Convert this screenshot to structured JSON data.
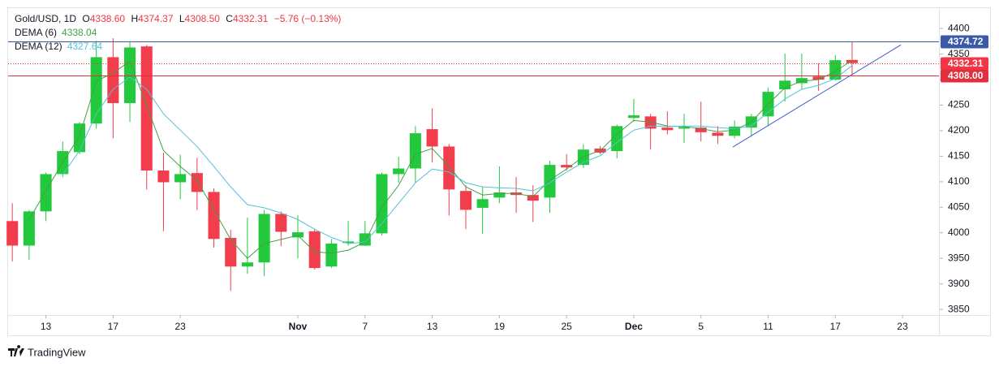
{
  "chart_data": {
    "type": "candlestick",
    "header": {
      "symbol": "Gold/USD, 1D",
      "o_key": "O",
      "o": "4338.60",
      "h_key": "H",
      "h": "4374.37",
      "l_key": "L",
      "l": "4308.50",
      "c_key": "C",
      "c": "4332.31",
      "change": "−5.76 (−0.13%)"
    },
    "legend_values": [
      "4338.04",
      "4327.64"
    ],
    "open": [
      4023,
      3975,
      4042,
      4115,
      4158,
      4214,
      4344,
      4254,
      4365,
      4122,
      4099,
      4117,
      4080,
      3990,
      3934,
      3942,
      4037,
      3991,
      4003,
      3934,
      3980,
      3975,
      3999,
      4115,
      4126,
      4203,
      4169,
      4082,
      4049,
      4069,
      4079,
      4074,
      4069,
      4133,
      4133,
      4165,
      4160,
      4225,
      4228,
      4206,
      4204,
      4206,
      4196,
      4190,
      4206,
      4228,
      4281,
      4293,
      4306,
      4300,
      4338.6
    ],
    "high": [
      4058,
      4045,
      4118,
      4179,
      4217,
      4376,
      4381,
      4373,
      4368,
      4157,
      4153,
      4147,
      4087,
      4006,
      4030,
      4045,
      4042,
      4034,
      4007,
      3988,
      4023,
      4023,
      4118,
      4149,
      4209,
      4244,
      4174,
      4093,
      4090,
      4130,
      4109,
      4093,
      4141,
      4154,
      4173,
      4170,
      4212,
      4262,
      4233,
      4238,
      4233,
      4257,
      4209,
      4220,
      4233,
      4284,
      4351,
      4351,
      4332,
      4348,
      4374.37
    ],
    "low": [
      3944,
      3947,
      4023,
      4109,
      4154,
      4204,
      4185,
      4217,
      4085,
      4003,
      4066,
      4045,
      3971,
      3886,
      3920,
      3915,
      3974,
      3950,
      3928,
      3931,
      3975,
      3974,
      3995,
      4098,
      4098,
      4138,
      4034,
      4007,
      3998,
      4058,
      4039,
      4021,
      4039,
      4122,
      4127,
      4154,
      4146,
      4217,
      4163,
      4193,
      4176,
      4179,
      4174,
      4185,
      4189,
      4209,
      4257,
      4281,
      4278,
      4298,
      4308.5
    ],
    "close": [
      3975,
      4042,
      4115,
      4160,
      4214,
      4344,
      4254,
      4363,
      4122,
      4099,
      4115,
      4080,
      3988,
      3934,
      3942,
      4037,
      4002,
      4001,
      3931,
      3979,
      3983,
      3999,
      4115,
      4126,
      4195,
      4169,
      4085,
      4045,
      4066,
      4079,
      4074,
      4063,
      4133,
      4128,
      4163,
      4157,
      4209,
      4230,
      4204,
      4201,
      4207,
      4197,
      4190,
      4208,
      4228,
      4276,
      4298,
      4303,
      4300,
      4338,
      4332.31
    ],
    "up_color": "#22c93c",
    "down_color": "#f23d4c",
    "series": [
      {
        "name": "DEMA (6)",
        "color": "#43a047",
        "values": [
          null,
          4026,
          4082,
          4138,
          4189,
          4297,
          4313,
          4336,
          4249,
          4161,
          4130,
          4103,
          4045,
          3987,
          3950,
          3979,
          3987,
          3995,
          3963,
          3960,
          3966,
          3982,
          4050,
          4093,
          4154,
          4165,
          4130,
          4090,
          4074,
          4077,
          4077,
          4071,
          4103,
          4125,
          4149,
          4161,
          4193,
          4220,
          4217,
          4209,
          4208,
          4204,
          4198,
          4201,
          4217,
          4252,
          4284,
          4297,
          4300,
          4316,
          4338.04
        ]
      },
      {
        "name": "DEMA (12)",
        "color": "#4fc3d9",
        "values": [
          null,
          null,
          null,
          4114,
          4161,
          4233,
          4281,
          4305,
          4281,
          4233,
          4201,
          4169,
          4130,
          4090,
          4055,
          4049,
          4039,
          4026,
          4007,
          3991,
          3979,
          3982,
          4018,
          4058,
          4098,
          4125,
          4119,
          4098,
          4090,
          4088,
          4087,
          4082,
          4098,
          4119,
          4138,
          4151,
          4177,
          4201,
          4209,
          4208,
          4209,
          4209,
          4206,
          4204,
          4209,
          4236,
          4262,
          4281,
          4289,
          4302,
          4327.64
        ]
      }
    ],
    "price_lines": [
      {
        "value": 4374.72,
        "color": "#3a5aa8",
        "style": "solid"
      },
      {
        "value": 4332.31,
        "color": "#f23645",
        "style": "dotted"
      },
      {
        "value": 4308,
        "label": "4308.00",
        "color": "#e0303f",
        "style": "solid"
      }
    ],
    "trend_line": {
      "x": [
        42.9,
        52.9
      ],
      "y": [
        4168,
        4368
      ],
      "color": "#3f5bd0"
    },
    "xlim": [
      -0.25,
      55.17
    ],
    "xticks": [
      {
        "value": 2,
        "label": "13"
      },
      {
        "value": 6,
        "label": "17"
      },
      {
        "value": 10,
        "label": "23"
      },
      {
        "value": 17,
        "label": "Nov"
      },
      {
        "value": 21,
        "label": "7"
      },
      {
        "value": 25,
        "label": "13"
      },
      {
        "value": 29,
        "label": "19"
      },
      {
        "value": 33,
        "label": "25"
      },
      {
        "value": 37,
        "label": "Dec"
      },
      {
        "value": 41,
        "label": "5"
      },
      {
        "value": 45,
        "label": "11"
      },
      {
        "value": 49,
        "label": "17"
      },
      {
        "value": 53,
        "label": "23"
      }
    ],
    "ylim": [
      3839,
      4440
    ],
    "yticks": [
      3850,
      3900,
      3950,
      4000,
      4050,
      4100,
      4150,
      4200,
      4250,
      4300,
      4350,
      4400
    ],
    "grid": false,
    "footer": "TradingView"
  }
}
